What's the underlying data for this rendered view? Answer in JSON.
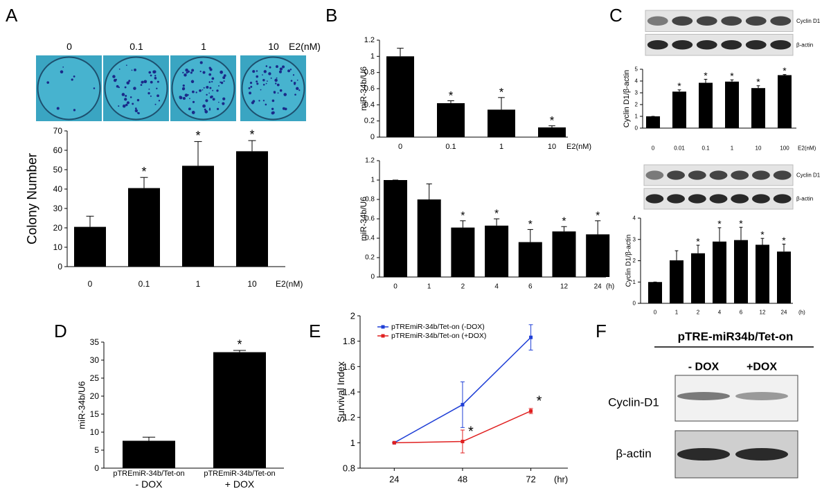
{
  "chart_data": [
    {
      "type": "bar",
      "panel": "A",
      "ylabel": "Colony Number",
      "categories": [
        "0",
        "0.1",
        "1",
        "10"
      ],
      "xunit": "E2(nM)",
      "values": [
        20.5,
        40.5,
        52,
        59.5
      ],
      "errors": [
        5.5,
        5.5,
        12.5,
        5.5
      ],
      "significance": [
        null,
        "*",
        "*",
        "*"
      ],
      "color": "#000000",
      "ylim": [
        0,
        70
      ],
      "yticks": [
        0,
        10,
        20,
        30,
        40,
        50,
        60,
        70
      ]
    },
    {
      "type": "bar",
      "panel": "B",
      "ylabel": "miR-34b/U6",
      "categories": [
        "0",
        "0.1",
        "1",
        "10"
      ],
      "xunit": "E2(nM)",
      "values": [
        1,
        0.42,
        0.34,
        0.12
      ],
      "errors": [
        0.1,
        0.03,
        0.15,
        0.02
      ],
      "significance": [
        null,
        "*",
        "*",
        "*"
      ],
      "color": "#000000",
      "ylim": [
        0,
        1.2
      ],
      "yticks": [
        0,
        0.2,
        0.4,
        0.6,
        0.8,
        1,
        1.2
      ]
    },
    {
      "type": "bar",
      "ylabel": "miR-34b/U6",
      "categories": [
        "0",
        "1",
        "2",
        "4",
        "6",
        "12",
        "24"
      ],
      "xunit": "(h)",
      "values": [
        1,
        0.8,
        0.51,
        0.53,
        0.36,
        0.47,
        0.44
      ],
      "errors": [
        0,
        0.16,
        0.07,
        0.07,
        0.13,
        0.05,
        0.14
      ],
      "significance": [
        null,
        null,
        "*",
        "*",
        "*",
        "*",
        "*"
      ],
      "color": "#000000",
      "ylim": [
        0,
        1.2
      ],
      "yticks": [
        0,
        0.2,
        0.4,
        0.6,
        0.8,
        1,
        1.2
      ]
    },
    {
      "type": "bar",
      "panel": "C",
      "blot": [
        "Cyclin D1",
        "β-actin"
      ],
      "ylabel": "Cyclin D1/β-actin",
      "categories": [
        "0",
        "0.01",
        "0.1",
        "1",
        "10",
        "100"
      ],
      "xunit": "E2(nM)",
      "values": [
        1,
        3.1,
        3.85,
        3.95,
        3.4,
        4.5
      ],
      "errors": [
        0,
        0.15,
        0.3,
        0.15,
        0.2,
        0.05
      ],
      "significance": [
        null,
        "*",
        "*",
        "*",
        "*",
        "*"
      ],
      "color": "#000000",
      "ylim": [
        0,
        5
      ],
      "yticks": [
        0,
        1,
        2,
        3,
        4,
        5
      ]
    },
    {
      "type": "bar",
      "blot": [
        "Cyclin D1",
        "β-actin"
      ],
      "ylabel": "Cyclin D1/β-actin",
      "categories": [
        "0",
        "1",
        "2",
        "4",
        "6",
        "12",
        "24"
      ],
      "xunit": "(h)",
      "values": [
        1,
        2.02,
        2.35,
        2.9,
        2.97,
        2.75,
        2.43
      ],
      "errors": [
        0,
        0.45,
        0.38,
        0.65,
        0.6,
        0.3,
        0.35
      ],
      "significance": [
        null,
        null,
        "*",
        "*",
        "*",
        "*",
        "*"
      ],
      "color": "#000000",
      "ylim": [
        0,
        4
      ],
      "yticks": [
        0,
        1,
        2,
        3,
        4
      ]
    },
    {
      "type": "bar",
      "panel": "D",
      "ylabel": "miR-34b/U6",
      "categories": [
        [
          "pTREmiR-34b/Tet-on",
          "- DOX"
        ],
        [
          "pTREmiR-34b/Tet-on",
          "+ DOX"
        ]
      ],
      "values": [
        7.6,
        32.2
      ],
      "errors": [
        1,
        0.5
      ],
      "significance": [
        null,
        "*"
      ],
      "color": "#000000",
      "ylim": [
        0,
        35
      ],
      "yticks": [
        0,
        5,
        10,
        15,
        20,
        25,
        30,
        35
      ]
    },
    {
      "type": "line",
      "panel": "E",
      "ylabel": "Survival Index",
      "x": [
        24,
        48,
        72
      ],
      "xunit": "(hr)",
      "xlim": [
        12,
        85
      ],
      "xticks": [
        24,
        48,
        72
      ],
      "ylim": [
        0.8,
        2
      ],
      "yticks": [
        0.8,
        1,
        1.2,
        1.4,
        1.6,
        1.8,
        2
      ],
      "series": [
        {
          "name": "pTREmiR-34b/Tet-on (-DOX)",
          "color": "#1f3fd6",
          "values": [
            1,
            1.3,
            1.83
          ],
          "errors": [
            0,
            0.18,
            0.1
          ]
        },
        {
          "name": "pTREmiR-34b/Tet-on (+DOX)",
          "color": "#e02020",
          "values": [
            1,
            1.01,
            1.25
          ],
          "errors": [
            0,
            0.09,
            0.02
          ],
          "significance": [
            null,
            "*",
            "*"
          ]
        }
      ]
    },
    {
      "type": "blot",
      "panel": "F",
      "title": "pTRE-miR34b/Tet-on",
      "columns": [
        "- DOX",
        "+DOX"
      ],
      "rows": [
        "Cyclin-D1",
        "β-actin"
      ]
    }
  ]
}
